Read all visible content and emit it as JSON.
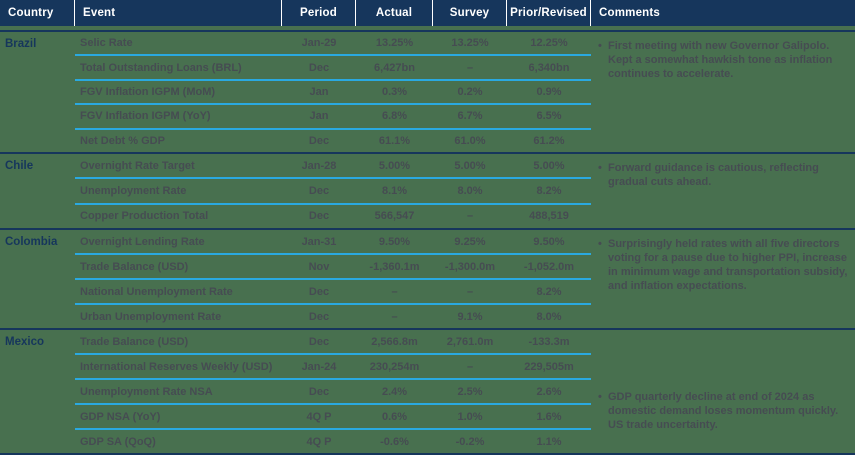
{
  "colors": {
    "navy": "#16365c",
    "green": "#48704f",
    "cyan": "#2aa9e0",
    "text": "#464c52",
    "header_text": "#ffffff"
  },
  "header": {
    "columns": [
      "Country",
      "Event",
      "Period",
      "Actual",
      "Survey",
      "Prior/Revised",
      "Comments"
    ]
  },
  "bullet": "•",
  "sections": [
    {
      "country": "Brazil",
      "comment": "First meeting with new Governor Galipolo. Kept a somewhat hawkish tone as inflation continues to accelerate.",
      "rows": [
        {
          "event": "Selic Rate",
          "period": "Jan-29",
          "actual": "13.25%",
          "survey": "13.25%",
          "prior": "12.25%"
        },
        {
          "event": "Total Outstanding Loans (BRL)",
          "period": "Dec",
          "actual": "6,427bn",
          "survey": "–",
          "prior": "6,340bn"
        },
        {
          "event": "FGV Inflation IGPM (MoM)",
          "period": "Jan",
          "actual": "0.3%",
          "survey": "0.2%",
          "prior": "0.9%"
        },
        {
          "event": "FGV Inflation IGPM (YoY)",
          "period": "Jan",
          "actual": "6.8%",
          "survey": "6.7%",
          "prior": "6.5%"
        },
        {
          "event": "Net Debt % GDP",
          "period": "Dec",
          "actual": "61.1%",
          "survey": "61.0%",
          "prior": "61.2%"
        }
      ]
    },
    {
      "country": "Chile",
      "comment": "Forward guidance is cautious, reflecting gradual cuts ahead.",
      "rows": [
        {
          "event": "Overnight Rate Target",
          "period": "Jan-28",
          "actual": "5.00%",
          "survey": "5.00%",
          "prior": "5.00%"
        },
        {
          "event": "Unemployment Rate",
          "period": "Dec",
          "actual": "8.1%",
          "survey": "8.0%",
          "prior": "8.2%"
        },
        {
          "event": "Copper Production Total",
          "period": "Dec",
          "actual": "566,547",
          "survey": "–",
          "prior": "488,519"
        }
      ]
    },
    {
      "country": "Colombia",
      "comment": "Surprisingly held rates with all five directors voting for a pause due to higher PPI, increase in minimum wage and transportation subsidy, and inflation expectations.",
      "rows": [
        {
          "event": "Overnight Lending Rate",
          "period": "Jan-31",
          "actual": "9.50%",
          "survey": "9.25%",
          "prior": "9.50%"
        },
        {
          "event": "Trade Balance (USD)",
          "period": "Nov",
          "actual": "-1,360.1m",
          "survey": "-1,300.0m",
          "prior": "-1,052.0m"
        },
        {
          "event": "National Unemployment Rate",
          "period": "Dec",
          "actual": "–",
          "survey": "–",
          "prior": "8.2%"
        },
        {
          "event": "Urban Unemployment Rate",
          "period": "Dec",
          "actual": "–",
          "survey": "9.1%",
          "prior": "8.0%"
        }
      ]
    },
    {
      "country": "Mexico",
      "comment": "GDP quarterly decline at end of 2024 as domestic demand loses momentum quickly. US trade uncertainty.",
      "rows": [
        {
          "event": "Trade Balance (USD)",
          "period": "Dec",
          "actual": "2,566.8m",
          "survey": "2,761.0m",
          "prior": "-133.3m"
        },
        {
          "event": "International Reserves Weekly (USD)",
          "period": "Jan-24",
          "actual": "230,254m",
          "survey": "–",
          "prior": "229,505m"
        },
        {
          "event": "Unemployment Rate NSA",
          "period": "Dec",
          "actual": "2.4%",
          "survey": "2.5%",
          "prior": "2.6%"
        },
        {
          "event": "GDP NSA (YoY)",
          "period": "4Q P",
          "actual": "0.6%",
          "survey": "1.0%",
          "prior": "1.6%"
        },
        {
          "event": "GDP SA (QoQ)",
          "period": "4Q P",
          "actual": "-0.6%",
          "survey": "-0.2%",
          "prior": "1.1%"
        }
      ]
    }
  ]
}
